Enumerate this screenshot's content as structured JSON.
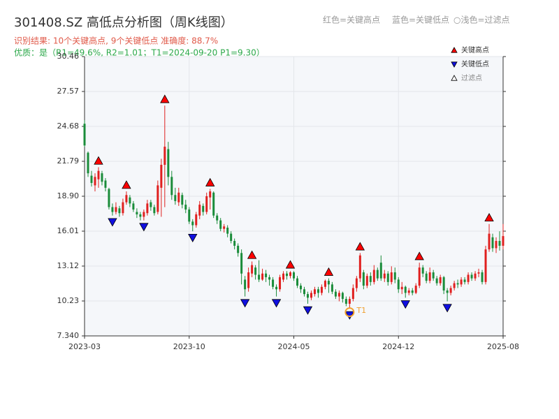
{
  "chart_data": {
    "type": "candlestick",
    "title": "301408.SZ 高低点分析图（周K线图）",
    "subtitles": [
      "识别结果: 10个关键高点, 9个关键低点  准确度: 88.7%",
      "优质：是（R1=49.6%, R2=1.01；T1=2024-09-20 P1=9.30）"
    ],
    "legend_note": [
      "红色=关键高点",
      "蓝色=关键低点",
      "○浅色=过滤点"
    ],
    "categories": [
      "2023-03",
      null,
      null,
      null,
      null,
      null,
      null,
      null,
      null,
      null,
      null,
      null,
      null,
      null,
      null,
      null,
      null,
      null,
      null,
      null,
      null,
      null,
      null,
      null,
      null,
      null,
      null,
      null,
      null,
      null,
      "2023-10",
      null,
      null,
      null,
      null,
      null,
      null,
      null,
      null,
      null,
      null,
      null,
      null,
      null,
      null,
      null,
      null,
      null,
      null,
      null,
      null,
      null,
      null,
      null,
      null,
      null,
      null,
      null,
      null,
      null,
      "2024-05",
      null,
      null,
      null,
      null,
      null,
      null,
      null,
      null,
      null,
      null,
      null,
      null,
      null,
      null,
      null,
      null,
      null,
      null,
      null,
      null,
      null,
      null,
      null,
      null,
      null,
      null,
      null,
      null,
      null,
      "2024-12",
      null,
      null,
      null,
      null,
      null,
      null,
      null,
      null,
      null,
      null,
      null,
      null,
      null,
      null,
      null,
      null,
      null,
      null,
      null,
      null,
      null,
      null,
      null,
      null,
      null,
      null,
      null,
      null,
      null,
      "2025-08"
    ],
    "open": [
      24.9,
      22.5,
      20.6,
      19.8,
      20.3,
      20.8,
      20.2,
      19.5,
      18.0,
      17.6,
      17.9,
      17.5,
      18.4,
      18.8,
      18.3,
      17.6,
      17.4,
      17.2,
      17.5,
      18.4,
      18.0,
      17.6,
      19.6,
      21.5,
      22.8,
      20.5,
      19.0,
      18.4,
      19.0,
      18.2,
      17.8,
      16.8,
      16.5,
      17.3,
      18.1,
      17.6,
      18.8,
      19.2,
      17.3,
      16.9,
      16.2,
      16.3,
      15.8,
      15.2,
      14.8,
      14.2,
      12.0,
      11.3,
      12.5,
      13.0,
      12.4,
      12.0,
      12.5,
      12.2,
      12.0,
      11.4,
      11.2,
      12.0,
      12.5,
      12.3,
      12.6,
      12.1,
      11.5,
      11.2,
      10.8,
      10.5,
      10.8,
      11.2,
      10.9,
      11.4,
      11.9,
      11.6,
      11.0,
      10.6,
      10.9,
      10.4,
      10.0,
      10.4,
      11.3,
      12.1,
      12.6,
      11.5,
      12.3,
      11.8,
      12.8,
      13.4,
      12.1,
      12.5,
      11.8,
      12.6,
      12.0,
      11.2,
      11.4,
      10.9,
      11.1,
      10.9,
      11.5,
      13.0,
      12.5,
      11.9,
      12.6,
      12.1,
      11.7,
      12.2,
      11.1,
      10.9,
      11.3,
      11.7,
      11.6,
      12.0,
      11.8,
      12.4,
      12.1,
      12.5,
      12.6,
      11.8,
      14.5,
      15.5,
      14.6,
      15.2,
      14.8
    ],
    "high": [
      25.2,
      22.6,
      21.0,
      20.8,
      21.3,
      21.0,
      20.4,
      19.6,
      18.3,
      18.4,
      18.1,
      18.7,
      19.3,
      19.0,
      18.5,
      17.9,
      17.6,
      17.8,
      18.6,
      18.6,
      18.2,
      20.2,
      22.0,
      26.4,
      23.4,
      21.0,
      19.6,
      19.6,
      19.2,
      18.6,
      18.0,
      17.0,
      17.6,
      18.5,
      18.3,
      19.2,
      19.5,
      19.3,
      17.5,
      17.1,
      16.6,
      16.5,
      16.0,
      15.4,
      15.0,
      14.5,
      12.3,
      13.0,
      13.5,
      13.2,
      13.6,
      12.9,
      12.8,
      12.4,
      12.2,
      11.6,
      12.4,
      12.7,
      12.7,
      12.7,
      12.7,
      12.3,
      11.7,
      11.4,
      11.0,
      11.1,
      11.4,
      11.4,
      11.6,
      12.0,
      12.1,
      11.8,
      11.2,
      11.1,
      11.0,
      10.6,
      10.6,
      11.6,
      12.3,
      14.2,
      12.8,
      12.5,
      12.6,
      13.2,
      13.0,
      14.0,
      12.8,
      12.7,
      13.1,
      13.0,
      12.2,
      11.8,
      11.5,
      11.3,
      11.3,
      11.7,
      13.4,
      13.2,
      12.7,
      13.0,
      12.8,
      12.3,
      12.4,
      12.3,
      11.3,
      11.5,
      11.9,
      12.0,
      12.2,
      12.2,
      12.6,
      12.6,
      12.7,
      12.9,
      12.8,
      14.8,
      16.6,
      15.8,
      15.5,
      16.0,
      16.6
    ],
    "low": [
      23.0,
      20.5,
      19.7,
      19.3,
      19.6,
      19.8,
      19.3,
      17.8,
      17.3,
      17.4,
      17.2,
      17.3,
      18.2,
      18.0,
      17.6,
      17.1,
      16.9,
      16.9,
      17.3,
      17.7,
      17.3,
      17.4,
      17.2,
      18.0,
      19.8,
      18.6,
      18.2,
      18.1,
      17.9,
      17.5,
      16.6,
      16.0,
      16.3,
      17.0,
      17.3,
      17.4,
      17.8,
      17.1,
      16.6,
      16.0,
      15.9,
      15.5,
      15.0,
      14.5,
      13.9,
      11.6,
      10.6,
      11.0,
      12.2,
      12.0,
      11.8,
      11.9,
      11.8,
      11.5,
      11.2,
      10.6,
      11.0,
      11.8,
      12.0,
      12.1,
      11.9,
      11.3,
      10.9,
      10.6,
      10.0,
      10.3,
      10.6,
      10.5,
      10.7,
      11.2,
      10.9,
      10.8,
      10.4,
      10.2,
      10.1,
      9.8,
      9.6,
      10.2,
      11.0,
      11.8,
      11.2,
      11.3,
      11.5,
      11.6,
      11.9,
      11.9,
      11.8,
      11.5,
      11.6,
      11.7,
      10.9,
      10.8,
      10.5,
      10.7,
      10.7,
      10.8,
      11.3,
      12.2,
      11.7,
      11.7,
      11.9,
      11.5,
      11.5,
      10.8,
      10.2,
      10.7,
      11.1,
      11.3,
      11.4,
      11.6,
      11.6,
      11.9,
      11.9,
      12.2,
      11.6,
      11.6,
      14.3,
      14.3,
      14.2,
      14.4,
      14.5
    ],
    "close": [
      23.1,
      20.8,
      20.0,
      20.5,
      21.0,
      20.1,
      19.6,
      18.0,
      17.6,
      18.0,
      17.5,
      18.4,
      19.0,
      18.3,
      17.8,
      17.4,
      17.2,
      17.6,
      18.3,
      18.0,
      17.5,
      19.8,
      21.5,
      23.0,
      20.5,
      19.0,
      18.5,
      19.2,
      18.2,
      17.8,
      16.8,
      16.5,
      17.4,
      18.2,
      17.6,
      18.9,
      19.3,
      17.3,
      16.9,
      16.2,
      16.4,
      15.8,
      15.2,
      14.8,
      14.2,
      12.5,
      11.2,
      12.6,
      13.2,
      12.4,
      12.0,
      12.5,
      12.2,
      12.0,
      11.4,
      11.2,
      12.2,
      12.5,
      12.3,
      12.6,
      12.1,
      11.5,
      11.2,
      10.8,
      10.5,
      10.9,
      11.2,
      10.9,
      11.4,
      11.9,
      11.6,
      11.0,
      10.6,
      10.9,
      10.4,
      10.0,
      10.4,
      11.3,
      12.1,
      14.0,
      11.5,
      12.3,
      11.8,
      12.8,
      12.1,
      12.1,
      12.5,
      11.8,
      12.6,
      12.0,
      11.2,
      11.4,
      10.9,
      11.1,
      10.9,
      11.5,
      13.0,
      12.5,
      11.9,
      12.6,
      12.1,
      11.7,
      12.2,
      11.1,
      10.9,
      11.3,
      11.7,
      11.6,
      12.0,
      11.8,
      12.4,
      12.1,
      12.5,
      12.6,
      11.8,
      14.5,
      15.8,
      14.6,
      15.2,
      14.8,
      15.6
    ],
    "up_color": "#e0201f",
    "down_color": "#1a8c3a",
    "markers": [
      {
        "name": "关键高点",
        "color": "#ff0000",
        "shape": "up",
        "x": [
          4,
          12,
          23,
          36,
          48,
          59,
          70,
          79,
          96,
          116
        ],
        "values": [
          21.3,
          19.3,
          26.4,
          19.5,
          13.5,
          12.7,
          12.1,
          14.2,
          13.4,
          16.6
        ]
      },
      {
        "name": "关键低点",
        "color": "#1010e0",
        "shape": "down",
        "x": [
          8,
          17,
          31,
          46,
          55,
          64,
          76,
          92,
          104
        ],
        "values": [
          17.3,
          16.9,
          16.0,
          10.6,
          10.6,
          10.0,
          9.6,
          10.5,
          10.2
        ]
      },
      {
        "name": "过滤点",
        "color": "#ffffff",
        "shape": "up",
        "x": [],
        "values": []
      }
    ],
    "annotation": {
      "label": "T1",
      "x": 76,
      "value": 9.3,
      "color": "#f0a030"
    },
    "xlim": [
      0,
      120
    ],
    "ylim": [
      7.34,
      30.46
    ],
    "yticks": [
      {
        "value": 7.34,
        "label": "7.340"
      },
      10.23,
      13.12,
      16.01,
      18.9,
      {
        "value": 18.9,
        "label": "18.90"
      },
      21.79,
      24.68,
      27.57,
      30.46
    ],
    "grid": true
  }
}
